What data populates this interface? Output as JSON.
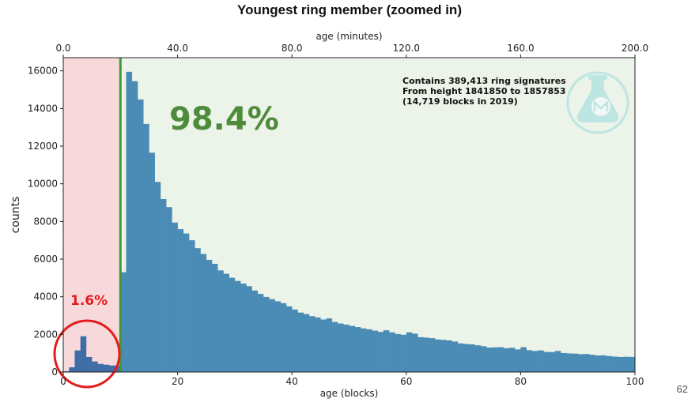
{
  "slide": {
    "title": "Youngest ring member (zoomed in)",
    "page_number": "62"
  },
  "chart_data": {
    "type": "bar",
    "title": "Youngest ring member (zoomed in)",
    "xlabel": "age (blocks)",
    "ylabel": "counts",
    "x2label": "age (minutes)",
    "xlim": [
      0,
      100
    ],
    "ylim": [
      0,
      16700
    ],
    "x2lim": [
      0,
      200
    ],
    "xticks": [
      "0",
      "20",
      "40",
      "60",
      "80",
      "100"
    ],
    "yticks": [
      "0",
      "2000",
      "4000",
      "6000",
      "8000",
      "10000",
      "12000",
      "14000",
      "16000"
    ],
    "x2ticks": [
      "0.0",
      "40.0",
      "80.0",
      "120.0",
      "160.0",
      "200.0"
    ],
    "grid": false,
    "bin_width": 1,
    "bin_starts": [
      0,
      1,
      2,
      3,
      4,
      5,
      6,
      7,
      8,
      9,
      10,
      11,
      12,
      13,
      14,
      15,
      16,
      17,
      18,
      19,
      20,
      21,
      22,
      23,
      24,
      25,
      26,
      27,
      28,
      29,
      30,
      31,
      32,
      33,
      34,
      35,
      36,
      37,
      38,
      39,
      40,
      41,
      42,
      43,
      44,
      45,
      46,
      47,
      48,
      49,
      50,
      51,
      52,
      53,
      54,
      55,
      56,
      57,
      58,
      59,
      60,
      61,
      62,
      63,
      64,
      65,
      66,
      67,
      68,
      69,
      70,
      71,
      72,
      73,
      74,
      75,
      76,
      77,
      78,
      79,
      80,
      81,
      82,
      83,
      84,
      85,
      86,
      87,
      88,
      89,
      90,
      91,
      92,
      93,
      94,
      95,
      96,
      97,
      98,
      99
    ],
    "values": [
      40,
      250,
      1150,
      1900,
      800,
      560,
      430,
      390,
      350,
      340,
      5300,
      15950,
      15450,
      14480,
      13180,
      11650,
      10100,
      9190,
      8760,
      7940,
      7590,
      7360,
      7000,
      6580,
      6270,
      5960,
      5750,
      5400,
      5220,
      5010,
      4840,
      4700,
      4560,
      4330,
      4150,
      3990,
      3870,
      3760,
      3660,
      3490,
      3320,
      3160,
      3080,
      2970,
      2900,
      2790,
      2850,
      2660,
      2580,
      2520,
      2450,
      2390,
      2320,
      2270,
      2200,
      2130,
      2220,
      2110,
      2020,
      1980,
      2110,
      2040,
      1850,
      1830,
      1800,
      1730,
      1710,
      1680,
      1620,
      1520,
      1490,
      1470,
      1420,
      1370,
      1300,
      1310,
      1320,
      1270,
      1290,
      1200,
      1320,
      1160,
      1120,
      1150,
      1070,
      1060,
      1120,
      1010,
      990,
      980,
      950,
      960,
      920,
      880,
      890,
      850,
      820,
      800,
      810,
      800
    ],
    "regions": [
      {
        "from": 0,
        "to": 10,
        "color": "#f8d9db",
        "label": "1.6%",
        "label_color": "#e51c1c"
      },
      {
        "from": 10,
        "to": 100,
        "color": "#ecf3e8",
        "label": "98.4%",
        "label_color": "#4e8b3a"
      }
    ],
    "divider_x": 10,
    "divider_color": "#3f9a34",
    "bar_color": "#4a8cb5",
    "highlight_bar_color": "#3f6ea7",
    "highlight_circle_color": "#e51c1c",
    "annotation_lines": [
      "Contains 389,413 ring signatures",
      "From height 1841850 to 1857853",
      "(14,719 blocks in 2019)"
    ],
    "logo": {
      "icon": "monero-flask-logo",
      "color": "#b5e3e1"
    }
  }
}
